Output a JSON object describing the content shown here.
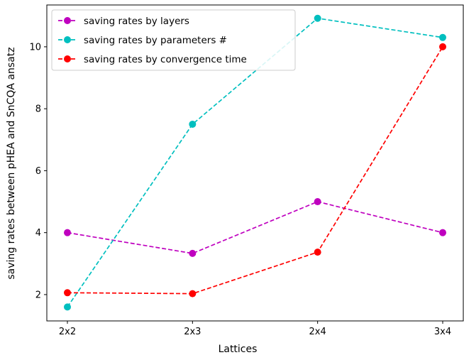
{
  "chart_data": {
    "type": "line",
    "title": "",
    "xlabel": "Lattices",
    "ylabel": "saving rates between pHEA and SnCQA ansatz",
    "categories": [
      "2x2",
      "2x3",
      "2x4",
      "3x4"
    ],
    "ylim": [
      1.15,
      11.35
    ],
    "yticks": [
      2,
      4,
      6,
      8,
      10
    ],
    "grid": false,
    "legend_position": "top-left",
    "series": [
      {
        "name": "saving rates by layers",
        "color": "#bf00bf",
        "values": [
          4.0,
          3.33,
          5.0,
          4.0
        ]
      },
      {
        "name": "saving rates by parameters #",
        "color": "#00bfbf",
        "values": [
          1.6,
          7.5,
          10.92,
          10.3
        ]
      },
      {
        "name": "saving rates by convergence time",
        "color": "#ff0000",
        "values": [
          2.06,
          2.03,
          3.37,
          10.0
        ]
      }
    ]
  }
}
